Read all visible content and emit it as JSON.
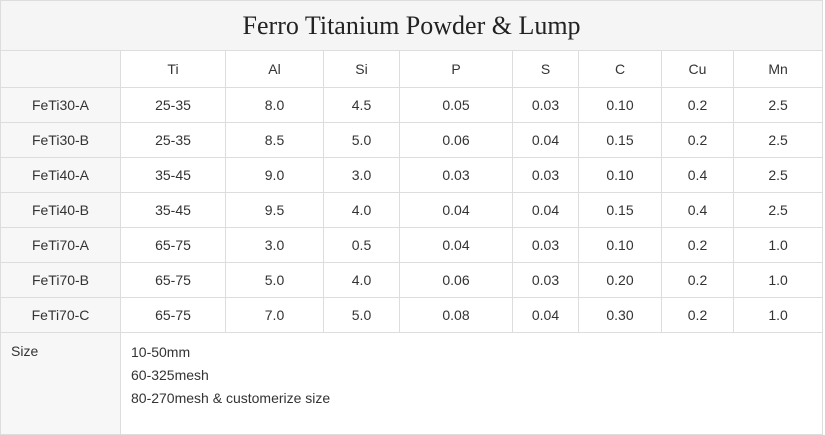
{
  "title": "Ferro Titanium Powder  & Lump",
  "headers": [
    "Ti",
    "Al",
    "Si",
    "P",
    "S",
    "C",
    "Cu",
    "Mn"
  ],
  "rows": [
    {
      "label": "FeTi30-A",
      "values": [
        "25-35",
        "8.0",
        "4.5",
        "0.05",
        "0.03",
        "0.10",
        "0.2",
        "2.5"
      ]
    },
    {
      "label": "FeTi30-B",
      "values": [
        "25-35",
        "8.5",
        "5.0",
        "0.06",
        "0.04",
        "0.15",
        "0.2",
        "2.5"
      ]
    },
    {
      "label": "FeTi40-A",
      "values": [
        "35-45",
        "9.0",
        "3.0",
        "0.03",
        "0.03",
        "0.10",
        "0.4",
        "2.5"
      ]
    },
    {
      "label": "FeTi40-B",
      "values": [
        "35-45",
        "9.5",
        "4.0",
        "0.04",
        "0.04",
        "0.15",
        "0.4",
        "2.5"
      ]
    },
    {
      "label": "FeTi70-A",
      "values": [
        "65-75",
        "3.0",
        "0.5",
        "0.04",
        "0.03",
        "0.10",
        "0.2",
        "1.0"
      ]
    },
    {
      "label": "FeTi70-B",
      "values": [
        "65-75",
        "5.0",
        "4.0",
        "0.06",
        "0.03",
        "0.20",
        "0.2",
        "1.0"
      ]
    },
    {
      "label": "FeTi70-C",
      "values": [
        "65-75",
        "7.0",
        "5.0",
        "0.08",
        "0.04",
        "0.30",
        "0.2",
        "1.0"
      ]
    }
  ],
  "size": {
    "label": "Size",
    "lines": [
      "10-50mm",
      "60-325mesh",
      "80-270mesh & customerize size"
    ]
  }
}
